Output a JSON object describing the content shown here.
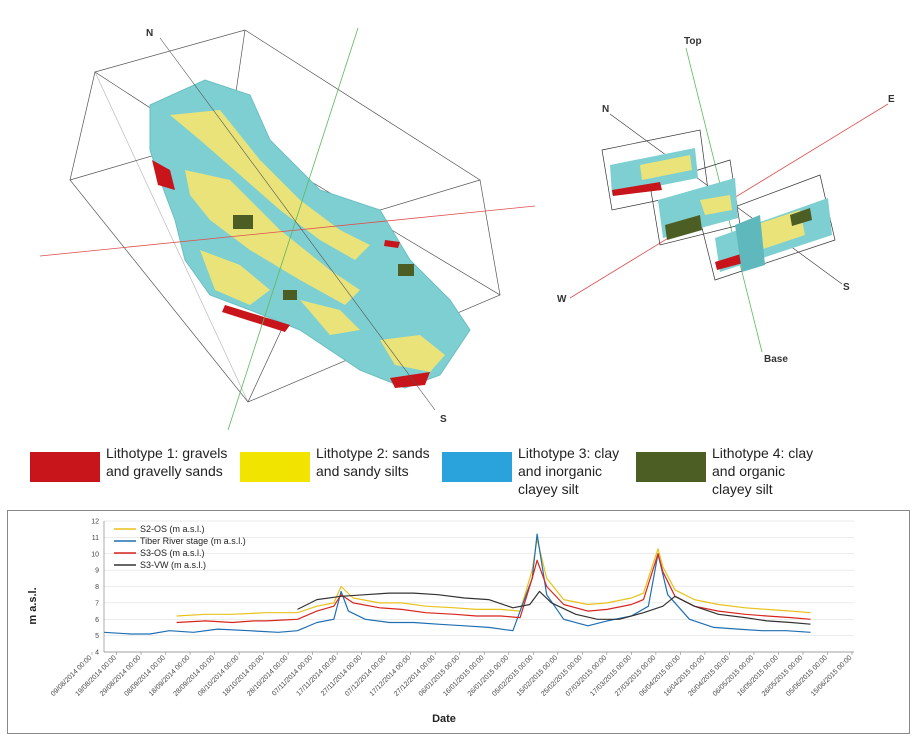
{
  "model_left": {
    "axis_labels": {
      "north": "N",
      "south": "S"
    }
  },
  "model_right": {
    "axis_labels": {
      "top": "Top",
      "base": "Base",
      "north": "N",
      "east": "E",
      "west": "W",
      "south": "S"
    }
  },
  "legend": {
    "items": [
      {
        "line1": "Lithotype 1: gravels",
        "line2": "and gravelly sands",
        "line3": "",
        "color": "#c8151b"
      },
      {
        "line1": "Lithotype 2: sands",
        "line2": "and  sandy silts",
        "line3": "",
        "color": "#f1e500"
      },
      {
        "line1": "Lithotype 3: clay",
        "line2": "and inorganic",
        "line3": "clayey silt",
        "color": "#2aa3dc"
      },
      {
        "line1": "Lithotype 4: clay",
        "line2": "and organic",
        "line3": "clayey silt",
        "color": "#4d5e24"
      }
    ]
  },
  "colors": {
    "lith1": "#c8151b",
    "lith2": "#e9e37a",
    "lith3": "#7ecfd1",
    "lith4": "#4d5e24"
  },
  "chart_data": {
    "type": "line",
    "xlabel": "Date",
    "ylabel": "m a.s.l.",
    "ylim": [
      4,
      12
    ],
    "yticks": [
      4,
      5,
      6,
      7,
      8,
      9,
      10,
      11,
      12
    ],
    "xlim": [
      "2014-08-09",
      "2015-06-15"
    ],
    "xtick_labels": [
      "09/08/2014 00:00",
      "19/08/2014 00:00",
      "29/08/2014 00:00",
      "08/09/2014 00:00",
      "18/09/2014 00:00",
      "28/09/2014 00:00",
      "08/10/2014 00:00",
      "18/10/2014 00:00",
      "28/10/2014 00:00",
      "07/11/2014 00:00",
      "17/11/2014 00:00",
      "27/11/2014 00:00",
      "07/12/2014 00:00",
      "17/12/2014 00:00",
      "27/12/2014 00:00",
      "06/01/2015 00:00",
      "16/01/2015 00:00",
      "26/01/2015 00:00",
      "05/02/2015 00:00",
      "15/02/2015 00:00",
      "25/02/2015 00:00",
      "07/03/2015 00:00",
      "17/03/2015 00:00",
      "27/03/2015 00:00",
      "06/04/2015 00:00",
      "16/04/2015 00:00",
      "26/04/2015 00:00",
      "06/05/2015 00:00",
      "16/05/2015 00:00",
      "26/05/2015 00:00",
      "05/06/2015 00:00",
      "15/06/2015 00:00"
    ],
    "grid": true,
    "legend_position": "top-left",
    "series": [
      {
        "name": "S2-OS (m a.s.l.)",
        "color": "#e8c21b",
        "x": [
          "2014-09-08",
          "2014-09-20",
          "2014-10-01",
          "2014-10-15",
          "2014-10-28",
          "2014-11-05",
          "2014-11-12",
          "2014-11-15",
          "2014-11-20",
          "2014-12-01",
          "2014-12-10",
          "2014-12-20",
          "2015-01-01",
          "2015-01-10",
          "2015-01-20",
          "2015-01-28",
          "2015-02-02",
          "2015-02-04",
          "2015-02-08",
          "2015-02-15",
          "2015-02-25",
          "2015-03-05",
          "2015-03-15",
          "2015-03-20",
          "2015-03-26",
          "2015-03-28",
          "2015-04-02",
          "2015-04-10",
          "2015-04-20",
          "2015-05-01",
          "2015-05-10",
          "2015-05-20",
          "2015-05-28"
        ],
        "y": [
          6.2,
          6.3,
          6.3,
          6.4,
          6.4,
          6.8,
          7.0,
          8.0,
          7.3,
          7.0,
          7.0,
          6.8,
          6.7,
          6.6,
          6.6,
          6.5,
          9.0,
          10.9,
          8.5,
          7.2,
          6.9,
          7.0,
          7.3,
          7.6,
          10.3,
          9.2,
          7.8,
          7.2,
          6.9,
          6.7,
          6.6,
          6.5,
          6.4
        ]
      },
      {
        "name": "Tiber River stage (m a.s.l.)",
        "color": "#1f6fb3",
        "x": [
          "2014-08-09",
          "2014-08-20",
          "2014-08-28",
          "2014-09-05",
          "2014-09-15",
          "2014-09-25",
          "2014-10-08",
          "2014-10-20",
          "2014-10-28",
          "2014-11-05",
          "2014-11-12",
          "2014-11-15",
          "2014-11-18",
          "2014-11-25",
          "2014-12-05",
          "2014-12-15",
          "2014-12-25",
          "2015-01-05",
          "2015-01-15",
          "2015-01-25",
          "2015-02-02",
          "2015-02-04",
          "2015-02-08",
          "2015-02-15",
          "2015-02-25",
          "2015-03-05",
          "2015-03-15",
          "2015-03-22",
          "2015-03-26",
          "2015-03-30",
          "2015-04-08",
          "2015-04-18",
          "2015-04-28",
          "2015-05-08",
          "2015-05-18",
          "2015-05-28"
        ],
        "y": [
          5.2,
          5.1,
          5.1,
          5.3,
          5.2,
          5.4,
          5.3,
          5.2,
          5.3,
          5.8,
          6.0,
          7.7,
          6.5,
          6.0,
          5.8,
          5.8,
          5.7,
          5.6,
          5.5,
          5.3,
          8.5,
          11.2,
          7.5,
          6.0,
          5.6,
          5.9,
          6.2,
          6.8,
          10.0,
          7.5,
          6.0,
          5.5,
          5.4,
          5.3,
          5.3,
          5.2
        ]
      },
      {
        "name": "S3-OS (m a.s.l.)",
        "color": "#d7261e",
        "x": [
          "2014-09-08",
          "2014-09-20",
          "2014-10-01",
          "2014-10-10",
          "2014-10-15",
          "2014-10-28",
          "2014-11-05",
          "2014-11-12",
          "2014-11-15",
          "2014-11-20",
          "2014-12-01",
          "2014-12-10",
          "2014-12-20",
          "2015-01-01",
          "2015-01-10",
          "2015-01-20",
          "2015-01-28",
          "2015-02-02",
          "2015-02-04",
          "2015-02-08",
          "2015-02-15",
          "2015-02-25",
          "2015-03-05",
          "2015-03-15",
          "2015-03-20",
          "2015-03-26",
          "2015-03-28",
          "2015-04-02",
          "2015-04-10",
          "2015-04-20",
          "2015-05-01",
          "2015-05-10",
          "2015-05-20",
          "2015-05-28"
        ],
        "y": [
          5.8,
          5.9,
          5.8,
          5.9,
          5.9,
          6.0,
          6.5,
          6.8,
          7.5,
          7.0,
          6.7,
          6.6,
          6.4,
          6.3,
          6.2,
          6.2,
          6.1,
          8.5,
          9.6,
          8.0,
          6.9,
          6.5,
          6.6,
          6.9,
          7.2,
          10.0,
          8.9,
          7.4,
          6.8,
          6.5,
          6.3,
          6.2,
          6.1,
          6.0
        ]
      },
      {
        "name": "S3-VW (m a.s.l.)",
        "color": "#333333",
        "x": [
          "2014-10-28",
          "2014-11-05",
          "2014-11-15",
          "2014-11-25",
          "2014-12-05",
          "2014-12-15",
          "2014-12-25",
          "2015-01-05",
          "2015-01-15",
          "2015-01-25",
          "2015-02-01",
          "2015-02-05",
          "2015-02-10",
          "2015-02-20",
          "2015-03-01",
          "2015-03-10",
          "2015-03-20",
          "2015-03-28",
          "2015-04-02",
          "2015-04-10",
          "2015-04-20",
          "2015-05-01",
          "2015-05-10",
          "2015-05-20",
          "2015-05-28"
        ],
        "y": [
          6.6,
          7.2,
          7.4,
          7.5,
          7.6,
          7.6,
          7.5,
          7.3,
          7.2,
          6.7,
          6.9,
          7.7,
          7.0,
          6.3,
          6.0,
          6.0,
          6.4,
          6.8,
          7.4,
          6.8,
          6.3,
          6.1,
          5.9,
          5.8,
          5.7
        ]
      }
    ]
  }
}
